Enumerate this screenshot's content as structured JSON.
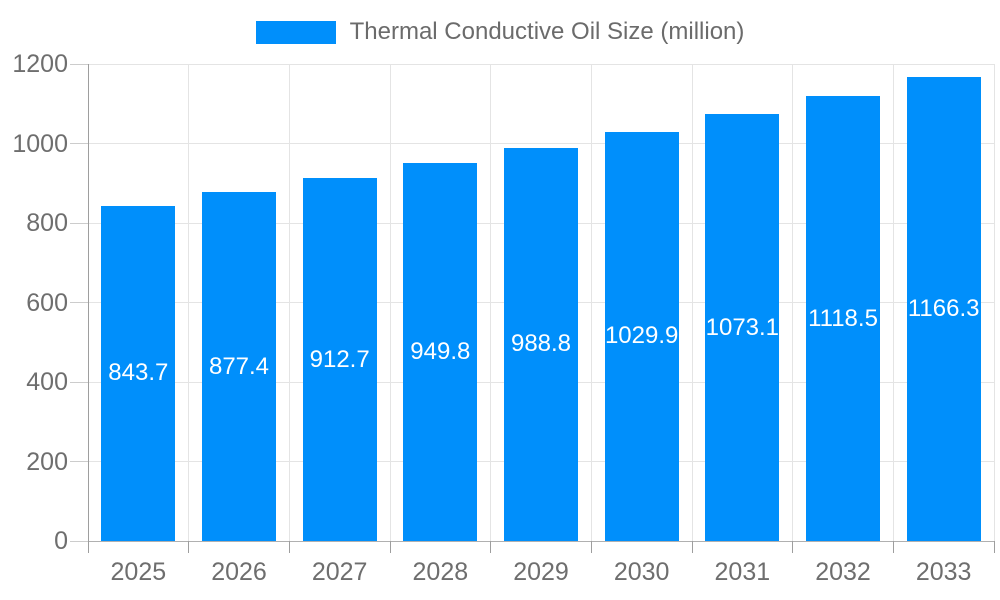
{
  "legend": {
    "items": [
      {
        "label": "Thermal Conductive Oil Size (million)"
      }
    ]
  },
  "chart_data": {
    "type": "bar",
    "title": "Thermal Conductive Oil Size (million)",
    "series": [
      {
        "name": "Thermal Conductive Oil Size (million)",
        "values": [
          843.7,
          877.4,
          912.7,
          949.8,
          988.8,
          1029.9,
          1073.1,
          1118.5,
          1166.3
        ],
        "value_labels": [
          "843.7",
          "877.4",
          "912.7",
          "949.8",
          "988.8",
          "1029.9",
          "1073.1",
          "1118.5",
          "1166.3"
        ]
      }
    ],
    "categories": [
      "2025",
      "2026",
      "2027",
      "2028",
      "2029",
      "2030",
      "2031",
      "2032",
      "2033"
    ],
    "xlabel": "",
    "ylabel": "",
    "ylim": [
      0,
      1200
    ],
    "yticks": [
      0,
      200,
      400,
      600,
      800,
      1000,
      1200
    ],
    "ytick_labels": [
      "0",
      "200",
      "400",
      "600",
      "800",
      "1000",
      "1200"
    ],
    "grid": true,
    "legend_position": "top",
    "value_labels_position": "inside-center"
  },
  "colors": {
    "bar": "#008FFB",
    "value_label": "#ffffff",
    "axis_label": "#6e6e6e",
    "legend_label": "#6b6b6b",
    "gridline": "#e4e4e4",
    "baseline": "#b0b0b0",
    "axis_line": "#9e9e9e",
    "y_tick": "#cccccc",
    "x_tick": "#9e9e9e",
    "background": "#ffffff"
  }
}
